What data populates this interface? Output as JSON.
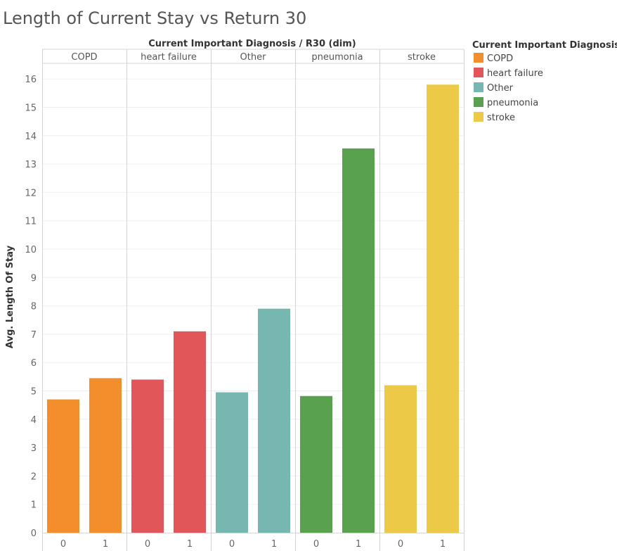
{
  "chart_data": {
    "type": "bar",
    "title": "Length of Current Stay vs Return 30",
    "column_header": "Current Important Diagnosis  /  R30 (dim)",
    "ylabel": "Avg. Length Of Stay",
    "ylim": [
      0,
      16.5
    ],
    "yticks": [
      0,
      1,
      2,
      3,
      4,
      5,
      6,
      7,
      8,
      9,
      10,
      11,
      12,
      13,
      14,
      15,
      16
    ],
    "xticks": [
      "0",
      "1"
    ],
    "grid": true,
    "legend": {
      "title": "Current Important Diagnosis",
      "position": "right"
    },
    "series": [
      {
        "name": "COPD",
        "color": "#f28e2b",
        "categories": [
          "0",
          "1"
        ],
        "values": [
          4.7,
          5.45
        ]
      },
      {
        "name": "heart failure",
        "color": "#e15759",
        "categories": [
          "0",
          "1"
        ],
        "values": [
          5.4,
          7.1
        ]
      },
      {
        "name": "Other",
        "color": "#76b7b2",
        "categories": [
          "0",
          "1"
        ],
        "values": [
          4.95,
          7.9
        ]
      },
      {
        "name": "pneumonia",
        "color": "#59a14f",
        "categories": [
          "0",
          "1"
        ],
        "values": [
          4.82,
          13.55
        ]
      },
      {
        "name": "stroke",
        "color": "#edc948",
        "categories": [
          "0",
          "1"
        ],
        "values": [
          5.2,
          15.8
        ]
      }
    ]
  }
}
